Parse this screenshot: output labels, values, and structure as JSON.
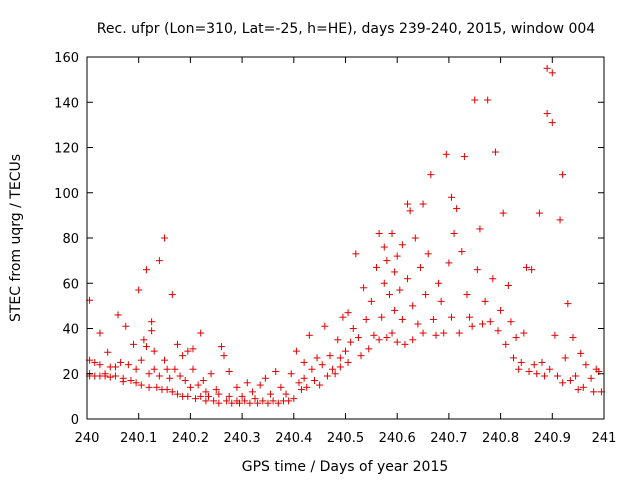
{
  "chart_data": {
    "type": "scatter",
    "title": "Rec. ufpr (Lon=310, Lat=-25, h=HE), days 239-240, 2015, window 004",
    "xlabel": "GPS time / Days of year 2015",
    "ylabel": "STEC from uqrg / TECUs",
    "xlim": [
      240,
      241
    ],
    "ylim": [
      0,
      160
    ],
    "xticks": [
      240,
      240.1,
      240.2,
      240.3,
      240.4,
      240.5,
      240.6,
      240.7,
      240.8,
      240.9,
      241
    ],
    "xtick_labels": [
      "240",
      "240.1",
      "240.2",
      "240.3",
      "240.4",
      "240.5",
      "240.6",
      "240.7",
      "240.8",
      "240.9",
      "241"
    ],
    "yticks": [
      0,
      20,
      40,
      60,
      80,
      100,
      120,
      140,
      160
    ],
    "ytick_labels": [
      "0",
      "20",
      "40",
      "60",
      "80",
      "100",
      "120",
      "140",
      "160"
    ],
    "grid": false,
    "legend": "none",
    "marker": "plus",
    "color": "#e00000",
    "series": [
      {
        "points": [
          [
            240.005,
            52.5
          ],
          [
            240.005,
            26
          ],
          [
            240.005,
            20
          ],
          [
            240.005,
            19
          ],
          [
            240.015,
            25
          ],
          [
            240.015,
            19
          ],
          [
            240.025,
            38
          ],
          [
            240.025,
            24
          ],
          [
            240.025,
            19
          ],
          [
            240.035,
            20
          ],
          [
            240.035,
            19
          ],
          [
            240.04,
            29.5
          ],
          [
            240.045,
            23
          ],
          [
            240.045,
            18.5
          ],
          [
            240.055,
            23
          ],
          [
            240.055,
            19
          ],
          [
            240.06,
            46
          ],
          [
            240.065,
            25
          ],
          [
            240.07,
            18
          ],
          [
            240.07,
            16.5
          ],
          [
            240.075,
            41
          ],
          [
            240.08,
            24
          ],
          [
            240.085,
            17
          ],
          [
            240.09,
            33
          ],
          [
            240.095,
            22
          ],
          [
            240.095,
            16
          ],
          [
            240.1,
            57
          ],
          [
            240.105,
            26
          ],
          [
            240.105,
            15
          ],
          [
            240.11,
            35
          ],
          [
            240.115,
            32
          ],
          [
            240.115,
            66
          ],
          [
            240.12,
            20
          ],
          [
            240.12,
            14
          ],
          [
            240.125,
            43
          ],
          [
            240.125,
            39
          ],
          [
            240.13,
            30
          ],
          [
            240.13,
            22
          ],
          [
            240.135,
            14
          ],
          [
            240.14,
            70
          ],
          [
            240.14,
            19
          ],
          [
            240.145,
            13
          ],
          [
            240.15,
            80
          ],
          [
            240.15,
            26
          ],
          [
            240.155,
            22
          ],
          [
            240.155,
            13
          ],
          [
            240.16,
            18
          ],
          [
            240.165,
            55
          ],
          [
            240.165,
            12
          ],
          [
            240.17,
            22
          ],
          [
            240.175,
            33
          ],
          [
            240.175,
            11
          ],
          [
            240.18,
            19
          ],
          [
            240.185,
            28
          ],
          [
            240.185,
            10
          ],
          [
            240.19,
            17
          ],
          [
            240.195,
            30
          ],
          [
            240.195,
            10
          ],
          [
            240.2,
            14
          ],
          [
            240.205,
            22
          ],
          [
            240.205,
            31
          ],
          [
            240.21,
            9
          ],
          [
            240.215,
            15
          ],
          [
            240.22,
            38
          ],
          [
            240.22,
            10
          ],
          [
            240.225,
            17
          ],
          [
            240.23,
            8
          ],
          [
            240.23,
            12
          ],
          [
            240.235,
            10
          ],
          [
            240.24,
            20
          ],
          [
            240.245,
            8
          ],
          [
            240.25,
            13
          ],
          [
            240.255,
            7
          ],
          [
            240.255,
            11
          ],
          [
            240.26,
            32
          ],
          [
            240.265,
            28
          ],
          [
            240.27,
            8
          ],
          [
            240.275,
            21
          ],
          [
            240.275,
            10
          ],
          [
            240.28,
            7
          ],
          [
            240.29,
            14
          ],
          [
            240.29,
            8
          ],
          [
            240.295,
            7
          ],
          [
            240.3,
            10
          ],
          [
            240.305,
            8
          ],
          [
            240.31,
            16
          ],
          [
            240.315,
            7
          ],
          [
            240.32,
            12
          ],
          [
            240.325,
            9
          ],
          [
            240.33,
            7
          ],
          [
            240.335,
            15
          ],
          [
            240.34,
            8
          ],
          [
            240.345,
            18
          ],
          [
            240.35,
            7
          ],
          [
            240.355,
            11
          ],
          [
            240.36,
            8
          ],
          [
            240.365,
            21
          ],
          [
            240.37,
            7
          ],
          [
            240.375,
            14
          ],
          [
            240.38,
            8
          ],
          [
            240.385,
            11
          ],
          [
            240.39,
            8
          ],
          [
            240.395,
            20
          ],
          [
            240.4,
            9
          ],
          [
            240.405,
            30
          ],
          [
            240.41,
            16
          ],
          [
            240.415,
            13
          ],
          [
            240.42,
            25
          ],
          [
            240.42,
            18
          ],
          [
            240.425,
            14
          ],
          [
            240.43,
            37
          ],
          [
            240.435,
            22
          ],
          [
            240.44,
            17
          ],
          [
            240.445,
            27
          ],
          [
            240.45,
            15
          ],
          [
            240.455,
            24
          ],
          [
            240.46,
            41
          ],
          [
            240.465,
            19
          ],
          [
            240.47,
            28
          ],
          [
            240.475,
            22
          ],
          [
            240.48,
            20
          ],
          [
            240.485,
            35
          ],
          [
            240.49,
            27
          ],
          [
            240.49,
            23
          ],
          [
            240.495,
            45
          ],
          [
            240.5,
            30
          ],
          [
            240.505,
            25
          ],
          [
            240.505,
            47
          ],
          [
            240.51,
            34
          ],
          [
            240.515,
            40
          ],
          [
            240.52,
            73
          ],
          [
            240.525,
            36
          ],
          [
            240.53,
            28
          ],
          [
            240.535,
            58
          ],
          [
            240.54,
            44
          ],
          [
            240.545,
            31
          ],
          [
            240.55,
            52
          ],
          [
            240.555,
            37
          ],
          [
            240.56,
            67
          ],
          [
            240.565,
            35
          ],
          [
            240.565,
            82
          ],
          [
            240.57,
            45
          ],
          [
            240.575,
            60
          ],
          [
            240.575,
            76
          ],
          [
            240.58,
            70
          ],
          [
            240.58,
            36
          ],
          [
            240.585,
            55
          ],
          [
            240.59,
            82
          ],
          [
            240.59,
            38
          ],
          [
            240.595,
            65
          ],
          [
            240.595,
            48
          ],
          [
            240.6,
            72
          ],
          [
            240.6,
            34
          ],
          [
            240.605,
            57
          ],
          [
            240.61,
            77
          ],
          [
            240.61,
            44
          ],
          [
            240.615,
            33
          ],
          [
            240.62,
            62
          ],
          [
            240.62,
            95
          ],
          [
            240.625,
            92
          ],
          [
            240.63,
            50
          ],
          [
            240.63,
            35
          ],
          [
            240.635,
            80
          ],
          [
            240.64,
            42
          ],
          [
            240.645,
            67
          ],
          [
            240.65,
            95
          ],
          [
            240.65,
            38
          ],
          [
            240.655,
            55
          ],
          [
            240.66,
            73
          ],
          [
            240.665,
            108
          ],
          [
            240.67,
            44
          ],
          [
            240.675,
            37
          ],
          [
            240.68,
            60
          ],
          [
            240.685,
            52
          ],
          [
            240.69,
            38
          ],
          [
            240.695,
            117
          ],
          [
            240.7,
            69
          ],
          [
            240.705,
            45
          ],
          [
            240.705,
            98
          ],
          [
            240.71,
            82
          ],
          [
            240.715,
            93
          ],
          [
            240.72,
            38
          ],
          [
            240.725,
            74
          ],
          [
            240.73,
            116
          ],
          [
            240.735,
            55
          ],
          [
            240.74,
            45
          ],
          [
            240.745,
            41
          ],
          [
            240.75,
            141
          ],
          [
            240.755,
            66
          ],
          [
            240.76,
            84
          ],
          [
            240.765,
            42
          ],
          [
            240.77,
            52
          ],
          [
            240.775,
            141
          ],
          [
            240.78,
            43
          ],
          [
            240.785,
            62
          ],
          [
            240.79,
            118
          ],
          [
            240.795,
            39
          ],
          [
            240.8,
            48
          ],
          [
            240.805,
            91
          ],
          [
            240.81,
            33
          ],
          [
            240.815,
            59
          ],
          [
            240.82,
            43
          ],
          [
            240.825,
            27
          ],
          [
            240.83,
            36
          ],
          [
            240.835,
            22
          ],
          [
            240.84,
            25
          ],
          [
            240.845,
            38
          ],
          [
            240.85,
            67
          ],
          [
            240.855,
            21
          ],
          [
            240.86,
            66
          ],
          [
            240.865,
            24
          ],
          [
            240.87,
            20
          ],
          [
            240.875,
            91
          ],
          [
            240.88,
            25
          ],
          [
            240.885,
            19
          ],
          [
            240.89,
            155
          ],
          [
            240.89,
            135
          ],
          [
            240.895,
            22
          ],
          [
            240.9,
            131
          ],
          [
            240.9,
            153
          ],
          [
            240.905,
            37
          ],
          [
            240.91,
            19
          ],
          [
            240.915,
            88
          ],
          [
            240.92,
            108
          ],
          [
            240.92,
            16
          ],
          [
            240.925,
            27
          ],
          [
            240.93,
            51
          ],
          [
            240.935,
            17
          ],
          [
            240.94,
            36
          ],
          [
            240.945,
            19
          ],
          [
            240.95,
            13
          ],
          [
            240.955,
            29
          ],
          [
            240.96,
            14
          ],
          [
            240.965,
            24
          ],
          [
            240.975,
            18
          ],
          [
            240.98,
            12
          ],
          [
            240.985,
            22
          ],
          [
            240.99,
            21
          ],
          [
            240.995,
            12
          ]
        ]
      }
    ]
  }
}
